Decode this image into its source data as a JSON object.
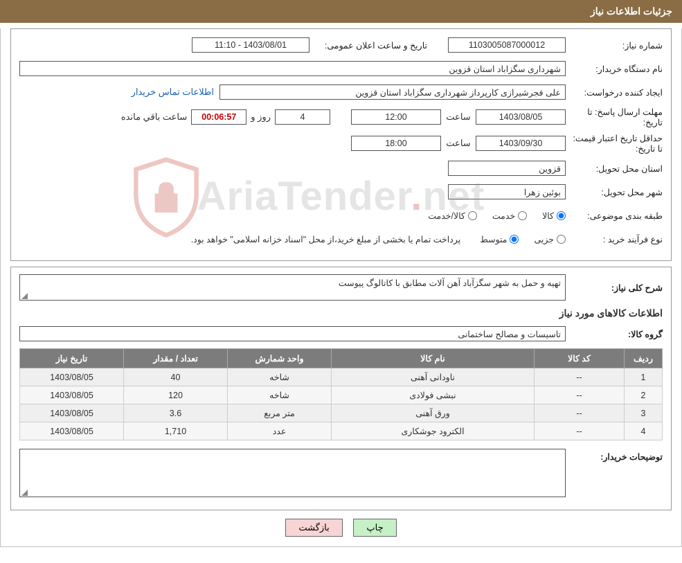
{
  "header": {
    "title": "جزئیات اطلاعات نیاز"
  },
  "panel1": {
    "need_no_label": "شماره نیاز:",
    "need_no": "1103005087000012",
    "announce_label": "تاریخ و ساعت اعلان عمومی:",
    "announce_value": "1403/08/01 - 11:10",
    "buyer_org_label": "نام دستگاه خریدار:",
    "buyer_org": "شهرداری سگزاباد استان قزوین",
    "requester_label": "ایجاد کننده درخواست:",
    "requester": "علی فجرشیرازی کارپرداز شهرداری سگزاباد استان قزوین",
    "contact_link": "اطلاعات تماس خریدار",
    "reply_deadline_label": "مهلت ارسال پاسخ: تا تاریخ:",
    "reply_date": "1403/08/05",
    "time_label": "ساعت",
    "reply_time": "12:00",
    "days": "4",
    "days_and": "روز و",
    "countdown": "00:06:57",
    "remaining": "ساعت باقي مانده",
    "price_validity_label": "حداقل تاریخ اعتبار قیمت: تا تاریخ:",
    "price_date": "1403/09/30",
    "price_time": "18:00",
    "delivery_prov_label": "استان محل تحویل:",
    "delivery_prov": "قزوین",
    "delivery_city_label": "شهر محل تحویل:",
    "delivery_city": "بوئین زهرا",
    "classification_label": "طبقه بندی موضوعی:",
    "cls_goods": "کالا",
    "cls_service": "خدمت",
    "cls_goods_service": "کالا/خدمت",
    "process_label": "نوع فرآیند خرید :",
    "proc_minor": "جزیی",
    "proc_medium": "متوسط",
    "process_note": "پرداخت تمام یا بخشی از مبلغ خرید،از محل \"اسناد خزانه اسلامی\" خواهد بود."
  },
  "panel2": {
    "need_desc_label": "شرح کلی نیاز:",
    "need_desc": "تهیه و حمل به شهر سگزآباد آهن آلات مطابق با کاتالوگ پیوست",
    "goods_title": "اطلاعات کالاهای مورد نیاز",
    "group_label": "گروه کالا:",
    "group_value": "تاسیسات و مصالح ساختمانی",
    "columns": [
      "ردیف",
      "کد کالا",
      "نام کالا",
      "واحد شمارش",
      "تعداد / مقدار",
      "تاریخ نیاز"
    ],
    "rows": [
      [
        "1",
        "--",
        "ناودانی آهنی",
        "شاخه",
        "40",
        "1403/08/05"
      ],
      [
        "2",
        "--",
        "نبشی فولادی",
        "شاخه",
        "120",
        "1403/08/05"
      ],
      [
        "3",
        "--",
        "ورق آهنی",
        "متر مربع",
        "3.6",
        "1403/08/05"
      ],
      [
        "4",
        "--",
        "الکترود جوشکاری",
        "عدد",
        "1,710",
        "1403/08/05"
      ]
    ],
    "buyer_notes_label": "توضیحات خریدار:",
    "buyer_notes": ""
  },
  "buttons": {
    "print": "چاپ",
    "back": "بازگشت"
  },
  "watermark": {
    "t1": "AriaTender",
    "t2": "net"
  },
  "colors": {
    "header_bg": "#8a6d44",
    "th_bg": "#7c7c7c",
    "countdown": "#cc0000",
    "btn_print": "#c6f0c6",
    "btn_back": "#f8d4d4"
  }
}
